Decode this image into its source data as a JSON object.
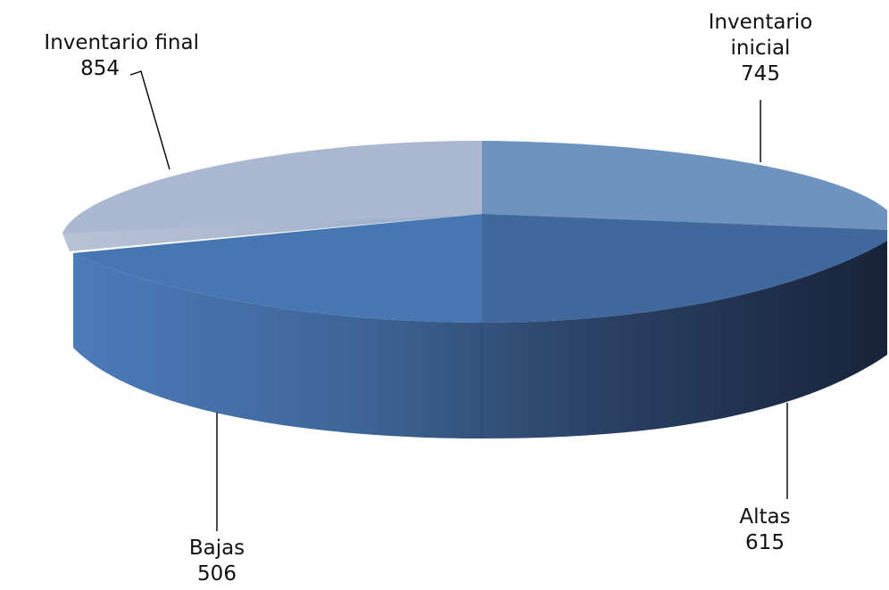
{
  "chart_data": {
    "type": "pie",
    "style": "3d-exploded-ellipse",
    "categories": [
      "Inventario inicial",
      "Altas",
      "Bajas",
      "Inventario final"
    ],
    "values": [
      745,
      615,
      506,
      854
    ],
    "title": "",
    "legend": "none",
    "data_labels": [
      {
        "lines": [
          "Inventario",
          "inicial"
        ],
        "value": "745"
      },
      {
        "lines": [
          "Altas"
        ],
        "value": "615"
      },
      {
        "lines": [
          "Bajas"
        ],
        "value": "506"
      },
      {
        "lines": [
          "Inventario final"
        ],
        "value": "854"
      }
    ],
    "colors": {
      "Inventario inicial": "#6e93bf",
      "Altas": "#40689c",
      "Bajas": "#4677b3",
      "Inventario final": "#aab8d1"
    }
  }
}
